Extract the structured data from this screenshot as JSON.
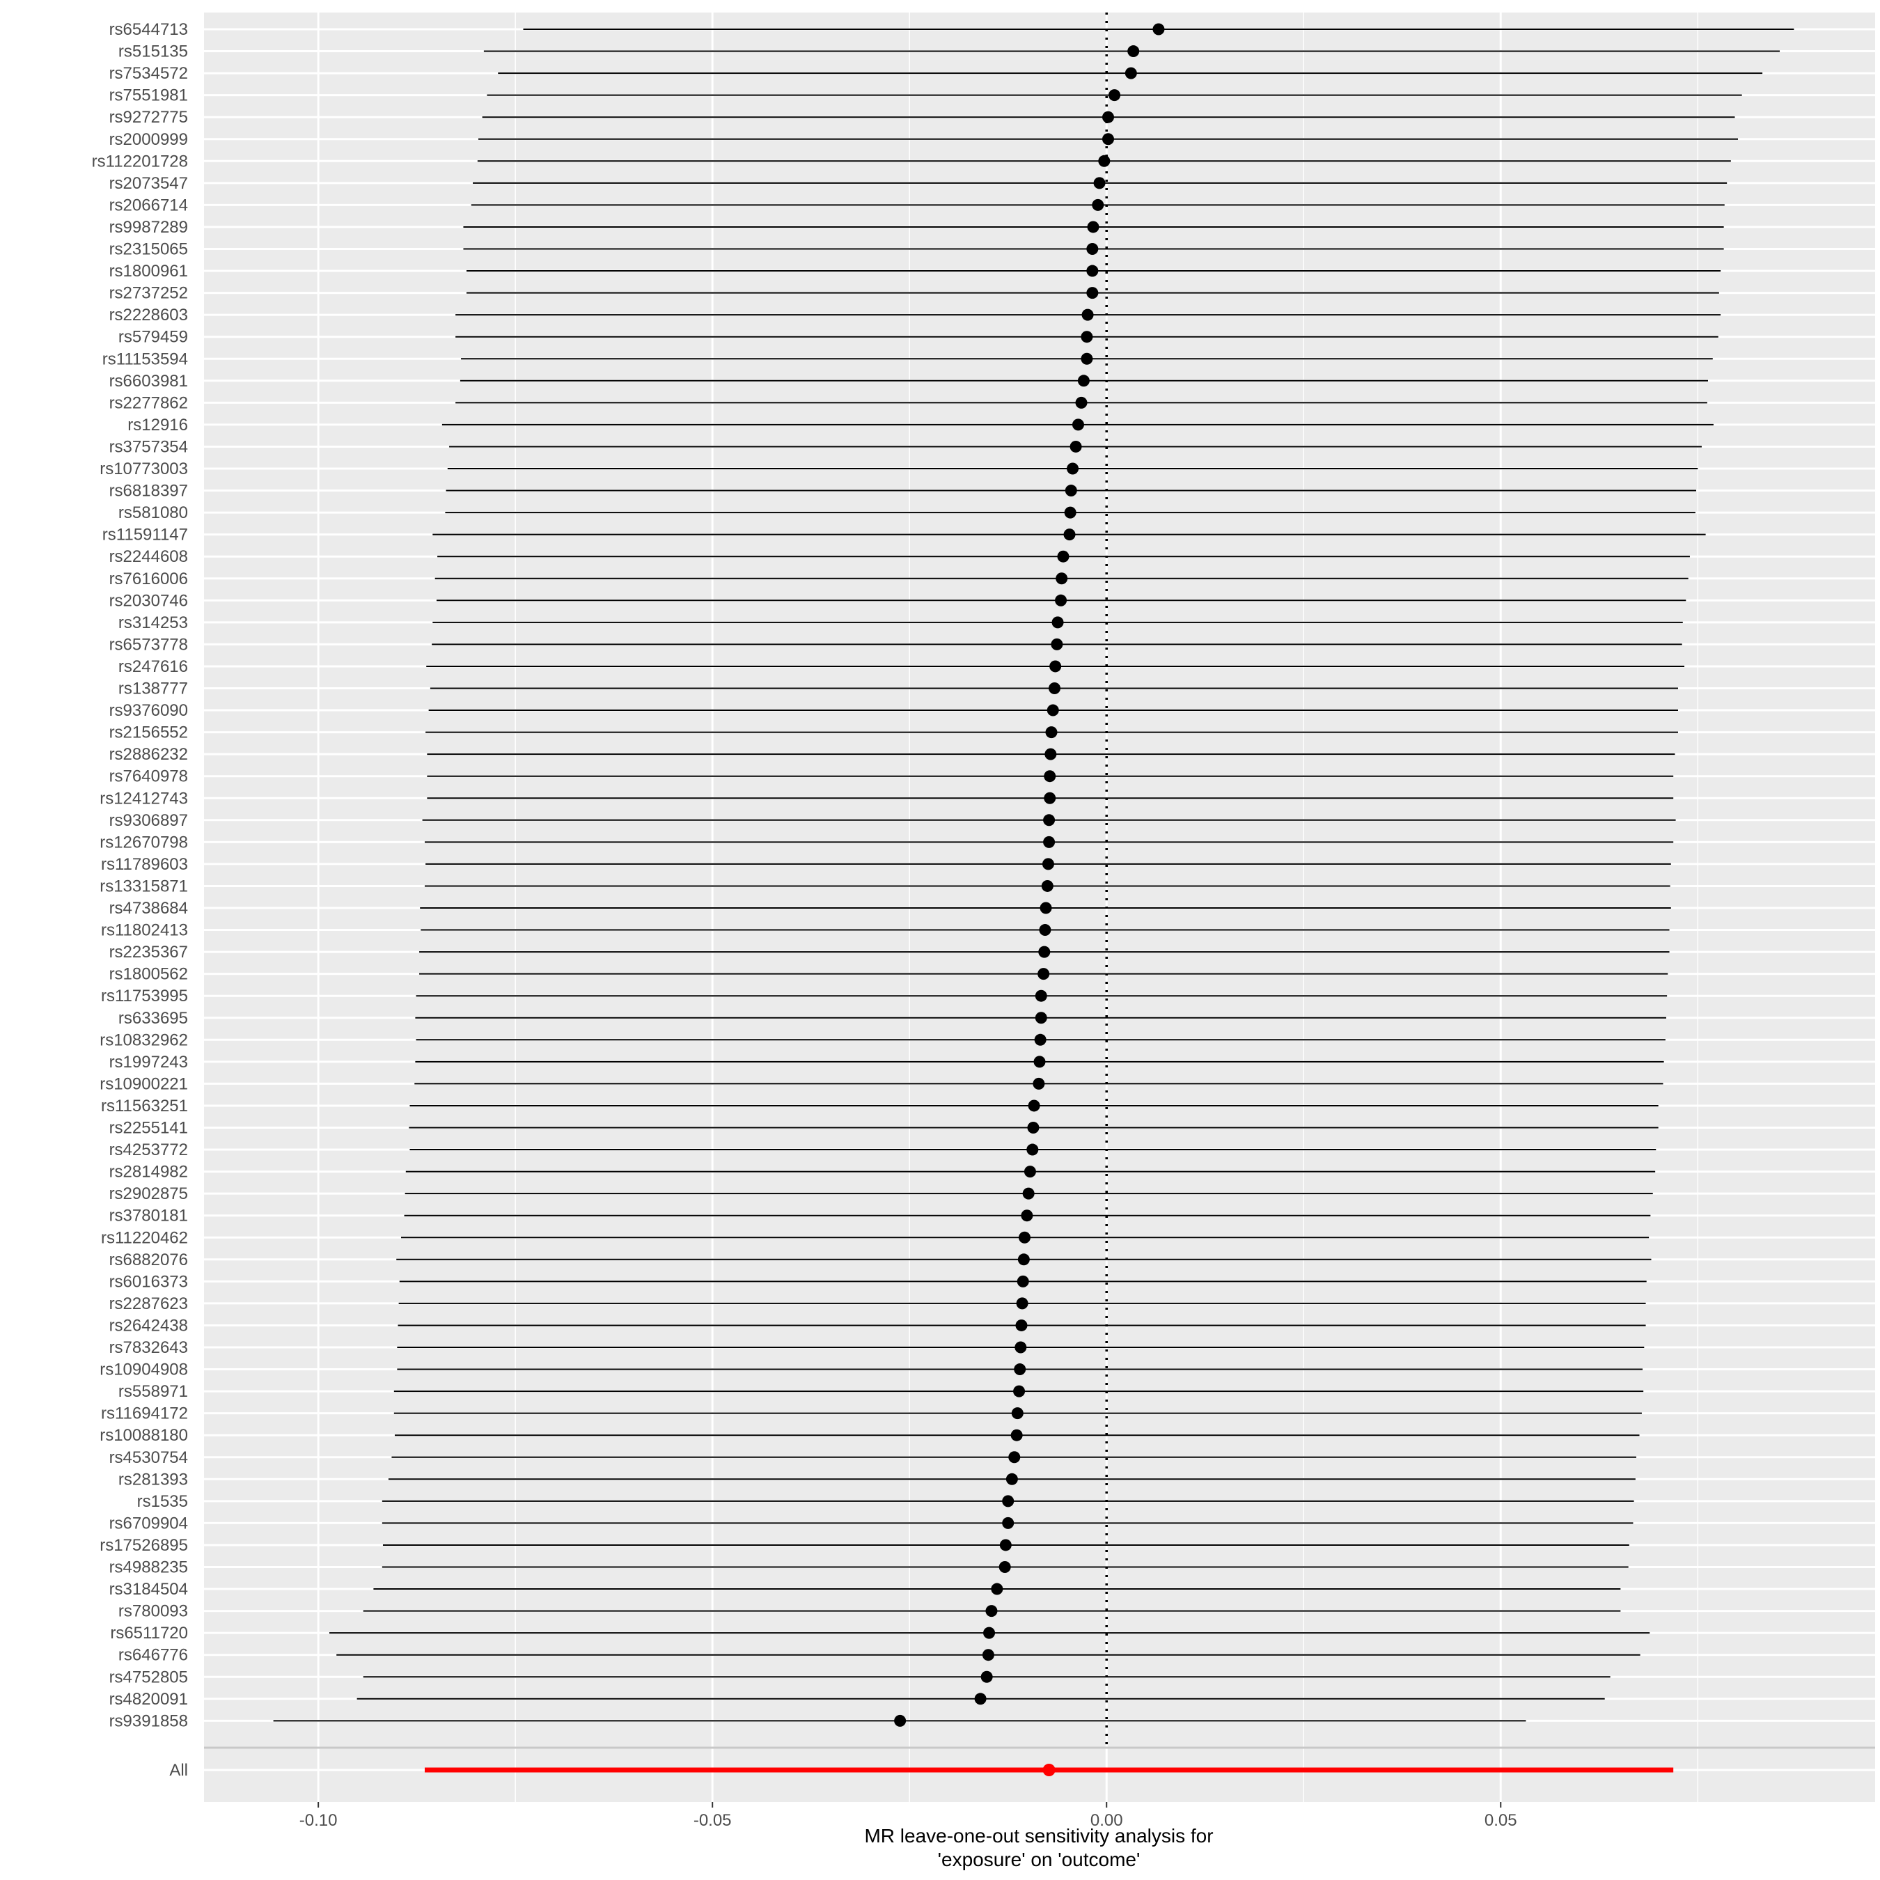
{
  "chart_data": {
    "type": "forest",
    "xlabel": [
      "MR leave-one-out sensitivity analysis for",
      "'exposure' on 'outcome'"
    ],
    "xlim": [
      -0.1145,
      0.0975
    ],
    "xticks": [
      -0.1,
      -0.05,
      0.0,
      0.05
    ],
    "xtick_labels": [
      "-0.10",
      "-0.05",
      "0.00",
      "0.05"
    ],
    "reference_line": 0,
    "colors": {
      "panel": "#ebebeb",
      "grid": "#ffffff",
      "point": "#000000",
      "overall": "#ff0000",
      "separator": "#c8c8c8"
    },
    "snps": [
      {
        "snp": "rs6544713",
        "b": 0.0066,
        "lo": -0.074,
        "hi": 0.0872
      },
      {
        "snp": "rs515135",
        "b": 0.0034,
        "lo": -0.079,
        "hi": 0.0854
      },
      {
        "snp": "rs7534572",
        "b": 0.0031,
        "lo": -0.0772,
        "hi": 0.0832
      },
      {
        "snp": "rs7551981",
        "b": 0.001,
        "lo": -0.0786,
        "hi": 0.0806
      },
      {
        "snp": "rs9272775",
        "b": 0.0002,
        "lo": -0.0792,
        "hi": 0.0797
      },
      {
        "snp": "rs2000999",
        "b": 0.0002,
        "lo": -0.0797,
        "hi": 0.0801
      },
      {
        "snp": "rs112201728",
        "b": -0.0003,
        "lo": -0.0798,
        "hi": 0.0792
      },
      {
        "snp": "rs2073547",
        "b": -0.0009,
        "lo": -0.0804,
        "hi": 0.0787
      },
      {
        "snp": "rs2066714",
        "b": -0.0011,
        "lo": -0.0806,
        "hi": 0.0784
      },
      {
        "snp": "rs9987289",
        "b": -0.0017,
        "lo": -0.0816,
        "hi": 0.0783
      },
      {
        "snp": "rs2315065",
        "b": -0.0018,
        "lo": -0.0816,
        "hi": 0.0783
      },
      {
        "snp": "rs1800961",
        "b": -0.0018,
        "lo": -0.0812,
        "hi": 0.0779
      },
      {
        "snp": "rs2737252",
        "b": -0.0018,
        "lo": -0.0812,
        "hi": 0.0777
      },
      {
        "snp": "rs2228603",
        "b": -0.0024,
        "lo": -0.0826,
        "hi": 0.0779
      },
      {
        "snp": "rs579459",
        "b": -0.0025,
        "lo": -0.0826,
        "hi": 0.0776
      },
      {
        "snp": "rs11153594",
        "b": -0.0025,
        "lo": -0.0819,
        "hi": 0.0769
      },
      {
        "snp": "rs6603981",
        "b": -0.0029,
        "lo": -0.082,
        "hi": 0.0763
      },
      {
        "snp": "rs2277862",
        "b": -0.0032,
        "lo": -0.0826,
        "hi": 0.0762
      },
      {
        "snp": "rs12916",
        "b": -0.0036,
        "lo": -0.0843,
        "hi": 0.077
      },
      {
        "snp": "rs3757354",
        "b": -0.0039,
        "lo": -0.0834,
        "hi": 0.0755
      },
      {
        "snp": "rs10773003",
        "b": -0.0043,
        "lo": -0.0836,
        "hi": 0.075
      },
      {
        "snp": "rs6818397",
        "b": -0.0045,
        "lo": -0.0838,
        "hi": 0.0748
      },
      {
        "snp": "rs581080",
        "b": -0.0046,
        "lo": -0.0839,
        "hi": 0.0747
      },
      {
        "snp": "rs11591147",
        "b": -0.0047,
        "lo": -0.0855,
        "hi": 0.076
      },
      {
        "snp": "rs2244608",
        "b": -0.0055,
        "lo": -0.0849,
        "hi": 0.074
      },
      {
        "snp": "rs7616006",
        "b": -0.0057,
        "lo": -0.0852,
        "hi": 0.0738
      },
      {
        "snp": "rs2030746",
        "b": -0.0058,
        "lo": -0.085,
        "hi": 0.0735
      },
      {
        "snp": "rs314253",
        "b": -0.0062,
        "lo": -0.0855,
        "hi": 0.0731
      },
      {
        "snp": "rs6573778",
        "b": -0.0063,
        "lo": -0.0856,
        "hi": 0.073
      },
      {
        "snp": "rs247616",
        "b": -0.0065,
        "lo": -0.0863,
        "hi": 0.0733
      },
      {
        "snp": "rs138777",
        "b": -0.0066,
        "lo": -0.0858,
        "hi": 0.0725
      },
      {
        "snp": "rs9376090",
        "b": -0.0068,
        "lo": -0.086,
        "hi": 0.0725
      },
      {
        "snp": "rs2156552",
        "b": -0.007,
        "lo": -0.0864,
        "hi": 0.0725
      },
      {
        "snp": "rs2886232",
        "b": -0.0071,
        "lo": -0.0862,
        "hi": 0.0721
      },
      {
        "snp": "rs7640978",
        "b": -0.0072,
        "lo": -0.0862,
        "hi": 0.0719
      },
      {
        "snp": "rs12412743",
        "b": -0.0072,
        "lo": -0.0862,
        "hi": 0.0719
      },
      {
        "snp": "rs9306897",
        "b": -0.0073,
        "lo": -0.0868,
        "hi": 0.0722
      },
      {
        "snp": "rs12670798",
        "b": -0.0073,
        "lo": -0.0865,
        "hi": 0.0719
      },
      {
        "snp": "rs11789603",
        "b": -0.0074,
        "lo": -0.0864,
        "hi": 0.0716
      },
      {
        "snp": "rs13315871",
        "b": -0.0075,
        "lo": -0.0865,
        "hi": 0.0715
      },
      {
        "snp": "rs4738684",
        "b": -0.0077,
        "lo": -0.0871,
        "hi": 0.0716
      },
      {
        "snp": "rs11802413",
        "b": -0.0078,
        "lo": -0.087,
        "hi": 0.0714
      },
      {
        "snp": "rs2235367",
        "b": -0.0079,
        "lo": -0.0872,
        "hi": 0.0714
      },
      {
        "snp": "rs1800562",
        "b": -0.008,
        "lo": -0.0872,
        "hi": 0.0712
      },
      {
        "snp": "rs11753995",
        "b": -0.0083,
        "lo": -0.0876,
        "hi": 0.0711
      },
      {
        "snp": "rs633695",
        "b": -0.0083,
        "lo": -0.0877,
        "hi": 0.071
      },
      {
        "snp": "rs10832962",
        "b": -0.0084,
        "lo": -0.0876,
        "hi": 0.0709
      },
      {
        "snp": "rs1997243",
        "b": -0.0085,
        "lo": -0.0877,
        "hi": 0.0707
      },
      {
        "snp": "rs10900221",
        "b": -0.0086,
        "lo": -0.0878,
        "hi": 0.0706
      },
      {
        "snp": "rs11563251",
        "b": -0.0092,
        "lo": -0.0884,
        "hi": 0.07
      },
      {
        "snp": "rs2255141",
        "b": -0.0093,
        "lo": -0.0885,
        "hi": 0.07
      },
      {
        "snp": "rs4253772",
        "b": -0.0094,
        "lo": -0.0884,
        "hi": 0.0697
      },
      {
        "snp": "rs2814982",
        "b": -0.0097,
        "lo": -0.0889,
        "hi": 0.0696
      },
      {
        "snp": "rs2902875",
        "b": -0.0099,
        "lo": -0.089,
        "hi": 0.0693
      },
      {
        "snp": "rs3780181",
        "b": -0.0101,
        "lo": -0.0891,
        "hi": 0.069
      },
      {
        "snp": "rs11220462",
        "b": -0.0104,
        "lo": -0.0895,
        "hi": 0.0688
      },
      {
        "snp": "rs6882076",
        "b": -0.0105,
        "lo": -0.0901,
        "hi": 0.0691
      },
      {
        "snp": "rs6016373",
        "b": -0.0106,
        "lo": -0.0897,
        "hi": 0.0685
      },
      {
        "snp": "rs2287623",
        "b": -0.0107,
        "lo": -0.0898,
        "hi": 0.0684
      },
      {
        "snp": "rs2642438",
        "b": -0.0108,
        "lo": -0.0899,
        "hi": 0.0684
      },
      {
        "snp": "rs7832643",
        "b": -0.0109,
        "lo": -0.09,
        "hi": 0.0682
      },
      {
        "snp": "rs10904908",
        "b": -0.011,
        "lo": -0.09,
        "hi": 0.068
      },
      {
        "snp": "rs558971",
        "b": -0.0111,
        "lo": -0.0904,
        "hi": 0.0681
      },
      {
        "snp": "rs11694172",
        "b": -0.0113,
        "lo": -0.0904,
        "hi": 0.0679
      },
      {
        "snp": "rs10088180",
        "b": -0.0114,
        "lo": -0.0903,
        "hi": 0.0676
      },
      {
        "snp": "rs4530754",
        "b": -0.0117,
        "lo": -0.0907,
        "hi": 0.0672
      },
      {
        "snp": "rs281393",
        "b": -0.012,
        "lo": -0.0911,
        "hi": 0.0671
      },
      {
        "snp": "rs1535",
        "b": -0.0125,
        "lo": -0.0919,
        "hi": 0.0669
      },
      {
        "snp": "rs6709904",
        "b": -0.0125,
        "lo": -0.0919,
        "hi": 0.0668
      },
      {
        "snp": "rs17526895",
        "b": -0.0128,
        "lo": -0.0918,
        "hi": 0.0663
      },
      {
        "snp": "rs4988235",
        "b": -0.0129,
        "lo": -0.0919,
        "hi": 0.0662
      },
      {
        "snp": "rs3184504",
        "b": -0.0139,
        "lo": -0.093,
        "hi": 0.0652
      },
      {
        "snp": "rs780093",
        "b": -0.0146,
        "lo": -0.0943,
        "hi": 0.0652
      },
      {
        "snp": "rs6511720",
        "b": -0.0149,
        "lo": -0.0986,
        "hi": 0.0689
      },
      {
        "snp": "rs646776",
        "b": -0.015,
        "lo": -0.0977,
        "hi": 0.0677
      },
      {
        "snp": "rs4752805",
        "b": -0.0152,
        "lo": -0.0943,
        "hi": 0.0639
      },
      {
        "snp": "rs4820091",
        "b": -0.016,
        "lo": -0.0951,
        "hi": 0.0632
      },
      {
        "snp": "rs9391858",
        "b": -0.0262,
        "lo": -0.1057,
        "hi": 0.0532
      }
    ],
    "overall": {
      "label": "All",
      "b": -0.0073,
      "lo": -0.0865,
      "hi": 0.0719
    }
  }
}
